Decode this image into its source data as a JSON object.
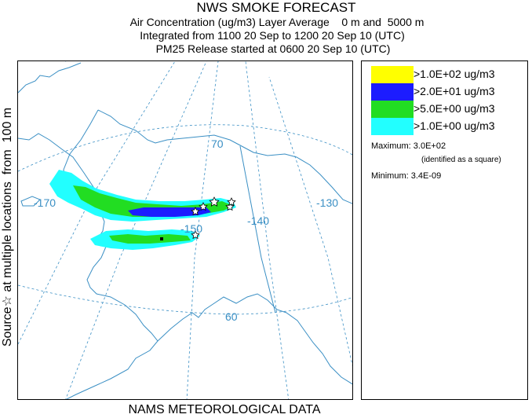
{
  "header": {
    "title": "NWS SMOKE FORECAST",
    "line2": "Air Concentration (ug/m3) Layer Average    0 m and  5000 m",
    "line3": "Integrated from 1100 20 Sep to 1200 20 Sep 10 (UTC)",
    "line4": "PM25 Release started at 0600 20 Sep 10 (UTC)"
  },
  "side_label": "Source☆ at multiple locations  from  100 m",
  "footer": "NAMS METEOROLOGICAL DATA",
  "map": {
    "graticule_labels": {
      "lon_m170": "-170",
      "lon_m150": "-150",
      "lon_m140": "-140",
      "lon_m130": "-130",
      "lat_70": "70",
      "lat_60": "60"
    },
    "colors": {
      "coast": "#3a8fc4",
      "graticule": "#3a8fc4",
      "yellow": "#ffff00",
      "blue": "#1c1cff",
      "green": "#22dd22",
      "cyan": "#22ffff"
    }
  },
  "legend": {
    "items": [
      {
        "label": ">1.0E+02 ug/m3",
        "color": "#ffff00"
      },
      {
        "label": ">2.0E+01 ug/m3",
        "color": "#1c1cff"
      },
      {
        "label": ">5.0E+00 ug/m3",
        "color": "#22dd22"
      },
      {
        "label": ">1.0E+00 ug/m3",
        "color": "#22ffff"
      }
    ],
    "maximum": "Maximum: 3.0E+02",
    "maximum_note": "(identified as a square)",
    "minimum": "Minimum: 3.4E-09"
  }
}
